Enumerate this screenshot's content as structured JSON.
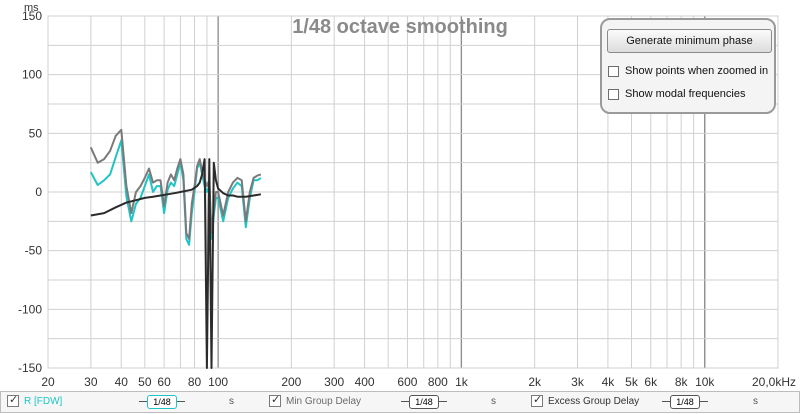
{
  "plot": {
    "title": "1/48 octave smoothing",
    "y_unit": "ms",
    "y_ticks": [
      "150",
      "100",
      "50",
      "0",
      "-50",
      "-100",
      "-150"
    ],
    "y_range": [
      -150,
      150
    ],
    "x_ticks": [
      "20",
      "30",
      "40",
      "50",
      "60",
      "80",
      "100",
      "200",
      "300",
      "400",
      "600",
      "800",
      "1k",
      "2k",
      "3k",
      "4k",
      "5k",
      "6k",
      "8k",
      "10k",
      "20,0kHz"
    ],
    "x_range_hz": [
      20,
      20000
    ],
    "grid": true,
    "colors": {
      "trace_r": "#1fc4c4",
      "trace_min": "#7a7a7a",
      "trace_excess": "#2b2b2b",
      "grid": "#d0d0d0",
      "grid_major": "#8c8c8c"
    }
  },
  "panel": {
    "generate_button": "Generate minimum phase",
    "show_points_label": "Show points when zoomed in",
    "show_modal_label": "Show modal frequencies",
    "show_points_checked": false,
    "show_modal_checked": false
  },
  "legend": {
    "items": [
      {
        "label": "R [FDW]",
        "smoothing": "1/48",
        "unit": "s",
        "checked": true,
        "color": "#1fc4c4"
      },
      {
        "label": "Min Group Delay",
        "smoothing": "1/48",
        "unit": "s",
        "checked": true,
        "color": "#7a7a7a"
      },
      {
        "label": "Excess Group Delay",
        "smoothing": "1/48",
        "unit": "s",
        "checked": true,
        "color": "#2b2b2b"
      }
    ]
  },
  "chart_data": {
    "type": "line",
    "title": "1/48 octave smoothing",
    "xlabel": "",
    "ylabel": "ms",
    "xscale": "log",
    "xlim": [
      20,
      20000
    ],
    "ylim": [
      -150,
      150
    ],
    "series": [
      {
        "name": "R [FDW]",
        "x": [
          30,
          32,
          34,
          36,
          38,
          40,
          42,
          44,
          46,
          48,
          50,
          52,
          54,
          56,
          58,
          60,
          62,
          64,
          66,
          68,
          70,
          72,
          74,
          76,
          78,
          80,
          82,
          84,
          86,
          88,
          90,
          92,
          94,
          96,
          98,
          100,
          105,
          110,
          115,
          120,
          125,
          130,
          135,
          140,
          145,
          150
        ],
        "y": [
          17,
          6,
          10,
          15,
          30,
          44,
          -4,
          -25,
          -10,
          -5,
          5,
          15,
          0,
          5,
          5,
          -18,
          2,
          8,
          5,
          15,
          25,
          10,
          -40,
          -45,
          -18,
          0,
          20,
          25,
          15,
          5,
          0,
          5,
          -40,
          -20,
          -5,
          -5,
          -25,
          -5,
          3,
          8,
          5,
          -30,
          -5,
          10,
          10,
          12
        ]
      },
      {
        "name": "Min Group Delay",
        "x": [
          30,
          32,
          34,
          36,
          38,
          40,
          42,
          44,
          46,
          48,
          50,
          52,
          54,
          56,
          58,
          60,
          62,
          64,
          66,
          68,
          70,
          72,
          74,
          76,
          78,
          80,
          82,
          84,
          86,
          88,
          90,
          92,
          94,
          96,
          98,
          100,
          105,
          110,
          115,
          120,
          125,
          130,
          135,
          140,
          145,
          150
        ],
        "y": [
          38,
          25,
          28,
          35,
          48,
          53,
          5,
          -18,
          0,
          5,
          12,
          20,
          8,
          10,
          10,
          -12,
          8,
          15,
          10,
          20,
          28,
          15,
          -35,
          -40,
          -10,
          5,
          22,
          28,
          18,
          10,
          5,
          10,
          -35,
          -15,
          0,
          0,
          -20,
          0,
          8,
          12,
          10,
          -25,
          0,
          12,
          14,
          15
        ]
      },
      {
        "name": "Excess Group Delay",
        "x": [
          30,
          34,
          38,
          42,
          46,
          50,
          54,
          58,
          62,
          66,
          70,
          74,
          78,
          82,
          84,
          86,
          88,
          90,
          92,
          94,
          96,
          98,
          100,
          105,
          110,
          115,
          120,
          130,
          140,
          150
        ],
        "y": [
          -20,
          -18,
          -13,
          -9,
          -7,
          -5,
          -4,
          -3,
          -2,
          -1,
          0,
          1,
          2,
          5,
          8,
          15,
          28,
          -150,
          28,
          -150,
          25,
          10,
          3,
          -1,
          -3,
          -3,
          -4,
          -4,
          -3,
          -2
        ]
      }
    ]
  }
}
